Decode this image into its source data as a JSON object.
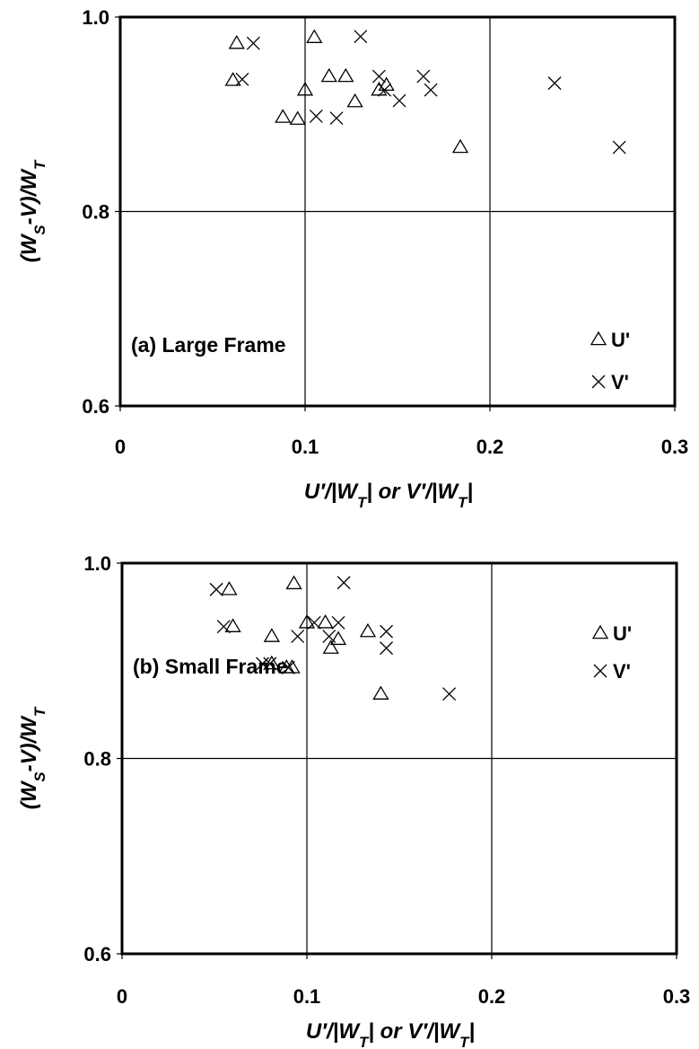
{
  "chart_data": [
    {
      "type": "scatter",
      "panel_label": "(a) Large Frame",
      "xlabel": "U′/|W_T| or V′/|W_T|",
      "ylabel": "(W_S-V)/W_T",
      "xlim": [
        0,
        0.3
      ],
      "ylim": [
        0.6,
        1.0
      ],
      "xticks": [
        "0",
        "0.1",
        "0.2",
        "0.3"
      ],
      "yticks": [
        "0.6",
        "0.8",
        "1.0"
      ],
      "grid": true,
      "legend_position": "bottom-right",
      "series": [
        {
          "name": "U'",
          "marker": "triangle",
          "points": [
            [
              0.061,
              0.935
            ],
            [
              0.063,
              0.973
            ],
            [
              0.088,
              0.897
            ],
            [
              0.096,
              0.895
            ],
            [
              0.1,
              0.925
            ],
            [
              0.105,
              0.979
            ],
            [
              0.113,
              0.939
            ],
            [
              0.122,
              0.939
            ],
            [
              0.127,
              0.913
            ],
            [
              0.14,
              0.925
            ],
            [
              0.144,
              0.93
            ],
            [
              0.184,
              0.866
            ]
          ]
        },
        {
          "name": "V'",
          "marker": "cross",
          "points": [
            [
              0.066,
              0.936
            ],
            [
              0.072,
              0.973
            ],
            [
              0.106,
              0.898
            ],
            [
              0.117,
              0.896
            ],
            [
              0.13,
              0.98
            ],
            [
              0.14,
              0.939
            ],
            [
              0.143,
              0.925
            ],
            [
              0.151,
              0.914
            ],
            [
              0.164,
              0.939
            ],
            [
              0.168,
              0.925
            ],
            [
              0.235,
              0.932
            ],
            [
              0.27,
              0.866
            ]
          ]
        }
      ]
    },
    {
      "type": "scatter",
      "panel_label": "(b) Small Frame",
      "xlabel": "U′/|W_T| or V′/|W_T|",
      "ylabel": "(W_S-V)/W_T",
      "xlim": [
        0,
        0.3
      ],
      "ylim": [
        0.6,
        1.0
      ],
      "xticks": [
        "0",
        "0.1",
        "0.2",
        "0.3"
      ],
      "yticks": [
        "0.6",
        "0.8",
        "1.0"
      ],
      "grid": true,
      "legend_position": "bottom-right",
      "series": [
        {
          "name": "U'",
          "marker": "triangle",
          "points": [
            [
              0.058,
              0.973
            ],
            [
              0.06,
              0.935
            ],
            [
              0.081,
              0.925
            ],
            [
              0.081,
              0.897
            ],
            [
              0.089,
              0.893
            ],
            [
              0.092,
              0.893
            ],
            [
              0.093,
              0.979
            ],
            [
              0.1,
              0.939
            ],
            [
              0.11,
              0.939
            ],
            [
              0.113,
              0.913
            ],
            [
              0.117,
              0.922
            ],
            [
              0.133,
              0.93
            ],
            [
              0.14,
              0.866
            ]
          ]
        },
        {
          "name": "V'",
          "marker": "cross",
          "points": [
            [
              0.051,
              0.973
            ],
            [
              0.055,
              0.935
            ],
            [
              0.076,
              0.897
            ],
            [
              0.08,
              0.897
            ],
            [
              0.09,
              0.893
            ],
            [
              0.095,
              0.925
            ],
            [
              0.104,
              0.939
            ],
            [
              0.112,
              0.925
            ],
            [
              0.117,
              0.939
            ],
            [
              0.12,
              0.98
            ],
            [
              0.143,
              0.93
            ],
            [
              0.143,
              0.913
            ],
            [
              0.177,
              0.866
            ]
          ]
        }
      ]
    }
  ]
}
